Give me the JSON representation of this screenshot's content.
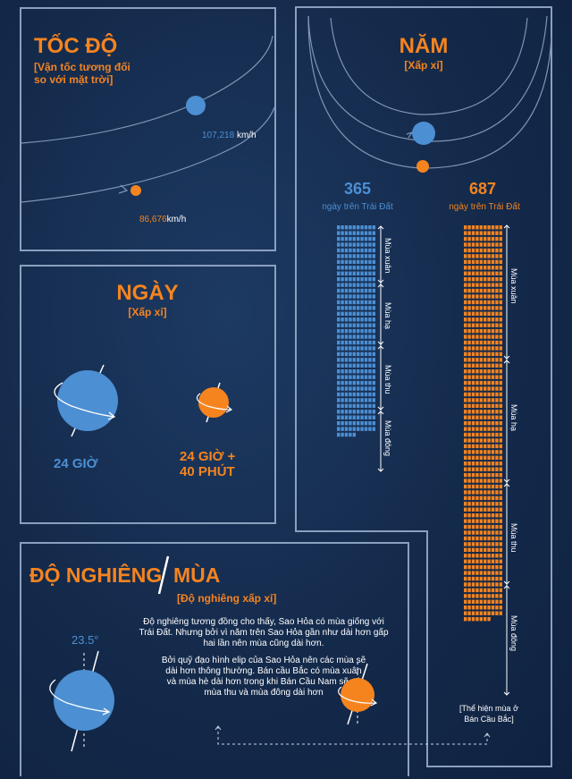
{
  "colors": {
    "earth": "#4c8fd3",
    "mars": "#f5841f",
    "border": "#8aa0bf",
    "bg": "#142a4b"
  },
  "speed": {
    "title": "TỐC ĐỘ",
    "subtitle_l1": "[Vận tốc tương đối",
    "subtitle_l2": "so với mặt trời]",
    "earth_value": "107,218",
    "earth_unit": "km/h",
    "mars_value": "86,676",
    "mars_unit": "km/h"
  },
  "day": {
    "title": "NGÀY",
    "subtitle": "[Xấp xỉ]",
    "earth_label": "24 GIỜ",
    "mars_label_l1": "24 GIỜ +",
    "mars_label_l2": "40 PHÚT"
  },
  "year": {
    "title": "NĂM",
    "subtitle": "[Xấp xỉ]",
    "earth_days": "365",
    "earth_days_label": "ngày trên Trái Đất",
    "mars_days": "687",
    "mars_days_label": "ngày trên Trái Đất",
    "earth_seasons": [
      "Mùa xuân",
      "Mùa hạ",
      "Mùa thu",
      "Mùa đông"
    ],
    "mars_seasons": [
      "Mùa xuân",
      "Mùa hạ",
      "Mùa thu",
      "Mùa đông"
    ],
    "note_l1": "[Thể hiện mùa ở",
    "note_l2": "Bán Cầu Bắc]"
  },
  "tilt": {
    "title_a": "ĐỘ NGHIÊNG",
    "title_b": "MÙA",
    "subtitle": "[Độ nghiêng xấp xỉ]",
    "earth_angle": "23.5°",
    "para1_l1": "Độ nghiêng tương đồng cho thấy, Sao Hỏa có mùa giống với",
    "para1_l2": "Trái Đất. Nhưng bởi vì năm trên Sao Hỏa gần như dài hơn gấp",
    "para1_l3": "hai lần nên mùa cũng dài hơn.",
    "para2_l1": "Bởi quỹ đạo hình elip của Sao Hỏa nên các mùa sẽ",
    "para2_l2": "dài hơn thông thường. Bán cầu Bắc có mùa xuân",
    "para2_l3": "và mùa hè dài hơn trong khi Bán Cầu Nam sẽ có",
    "para2_l4": "mùa thu và mùa đông dài hơn"
  }
}
